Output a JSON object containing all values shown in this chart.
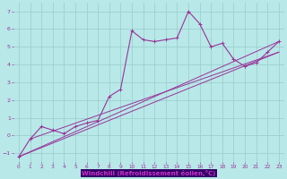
{
  "xlabel": "Windchill (Refroidissement éolien,°C)",
  "bg_color": "#b8e8e8",
  "line_color": "#993399",
  "grid_color": "#99cccc",
  "xlabel_bg": "#330066",
  "xlabel_fg": "#cc33cc",
  "xlim": [
    -0.5,
    23.5
  ],
  "ylim": [
    -1.5,
    7.5
  ],
  "xticks": [
    0,
    1,
    2,
    3,
    4,
    5,
    6,
    7,
    8,
    9,
    10,
    11,
    12,
    13,
    14,
    15,
    16,
    17,
    18,
    19,
    20,
    21,
    22,
    23
  ],
  "yticks": [
    -1,
    0,
    1,
    2,
    3,
    4,
    5,
    6,
    7
  ],
  "series": [
    [
      0,
      -1.2
    ],
    [
      1,
      -0.2
    ],
    [
      2,
      0.5
    ],
    [
      3,
      0.3
    ],
    [
      4,
      0.1
    ],
    [
      5,
      0.5
    ],
    [
      6,
      0.7
    ],
    [
      7,
      0.85
    ],
    [
      8,
      2.2
    ],
    [
      9,
      2.6
    ],
    [
      10,
      5.9
    ],
    [
      11,
      5.4
    ],
    [
      12,
      5.3
    ],
    [
      13,
      5.4
    ],
    [
      14,
      5.5
    ],
    [
      15,
      7.0
    ],
    [
      16,
      6.3
    ],
    [
      17,
      5.0
    ],
    [
      18,
      5.2
    ],
    [
      19,
      4.3
    ],
    [
      20,
      3.9
    ],
    [
      21,
      4.1
    ],
    [
      22,
      4.7
    ],
    [
      23,
      5.3
    ]
  ],
  "line2": [
    [
      0,
      -1.2
    ],
    [
      23,
      4.7
    ]
  ],
  "line3": [
    [
      0,
      -1.2
    ],
    [
      23,
      5.3
    ]
  ],
  "line4": [
    [
      1,
      -0.2
    ],
    [
      23,
      4.7
    ]
  ]
}
